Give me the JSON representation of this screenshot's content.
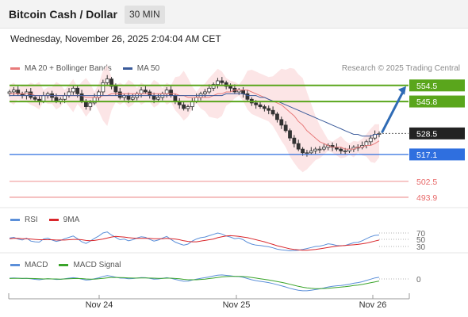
{
  "header": {
    "title": "Bitcoin Cash / Dollar",
    "timeframe": "30 MIN",
    "datetime": "Wednesday, November 26, 2025 2:04:04 AM CET"
  },
  "legend": {
    "ma20_label": "MA 20 + Bollinger Bands",
    "ma50_label": "MA 50",
    "credit": "Research © 2025 Trading Central",
    "rsi_label": "RSI",
    "rsi_ma_label": "9MA",
    "macd_label": "MACD",
    "macd_signal_label": "MACD Signal"
  },
  "colors": {
    "ma20": "#e87a7a",
    "ma50": "#3a5a9a",
    "bollinger_fill": "#fbe0e2",
    "resistance": "#5aa61c",
    "support": "#2f6fdf",
    "target_line": "#e86a6a",
    "last_price": "#222222",
    "arrow": "#2f6bb5",
    "rsi": "#5b8fd9",
    "rsi_ma": "#d9262b",
    "macd": "#5b8fd9",
    "macd_signal": "#3aa42a",
    "candle_up": "#ffffff",
    "candle_down": "#333333"
  },
  "chart_data": {
    "type": "candlestick",
    "title": "Bitcoin Cash / Dollar",
    "interval": "30 MIN",
    "x_tick_labels": [
      "Nov 24",
      "Nov 25",
      "Nov 26"
    ],
    "y_range": [
      490,
      560
    ],
    "price_levels": [
      {
        "label": "554.5",
        "value": 554.5,
        "kind": "resistance"
      },
      {
        "label": "545.8",
        "value": 545.8,
        "kind": "resistance"
      },
      {
        "label": "528.5",
        "value": 528.5,
        "kind": "last"
      },
      {
        "label": "517.1",
        "value": 517.1,
        "kind": "support"
      },
      {
        "label": "502.5",
        "value": 502.5,
        "kind": "target"
      },
      {
        "label": "493.9",
        "value": 493.9,
        "kind": "target"
      }
    ],
    "close": [
      551,
      552,
      550,
      549,
      551,
      548,
      547,
      546,
      549,
      550,
      548,
      546,
      547,
      549,
      551,
      553,
      550,
      546,
      543,
      545,
      548,
      551,
      556,
      558,
      554,
      551,
      548,
      549,
      547,
      548,
      550,
      552,
      551,
      549,
      547,
      548,
      550,
      552,
      549,
      546,
      544,
      542,
      543,
      546,
      548,
      550,
      551,
      553,
      555,
      557,
      556,
      554,
      553,
      551,
      552,
      550,
      547,
      545,
      544,
      543,
      542,
      541,
      539,
      536,
      533,
      530,
      526,
      523,
      520,
      518,
      518,
      519,
      520,
      520,
      521,
      522,
      521,
      520,
      519,
      519,
      520,
      521,
      521,
      522,
      524,
      526,
      528,
      528.5
    ],
    "ma20": [
      550,
      550,
      550,
      550,
      550,
      550,
      549,
      549,
      549,
      549,
      549,
      549,
      549,
      549,
      549,
      549,
      549,
      549,
      548,
      548,
      548,
      548,
      549,
      549,
      550,
      550,
      550,
      550,
      550,
      550,
      550,
      550,
      550,
      550,
      550,
      550,
      550,
      550,
      550,
      550,
      549,
      549,
      548,
      548,
      548,
      548,
      548,
      548,
      549,
      550,
      550,
      551,
      551,
      552,
      552,
      552,
      552,
      551,
      550,
      549,
      548,
      547,
      546,
      545,
      544,
      542,
      540,
      538,
      535,
      533,
      530,
      528,
      526,
      524,
      523,
      522,
      521,
      521,
      521,
      520,
      520,
      520,
      521,
      521,
      522,
      522,
      523,
      524.5
    ],
    "ma50": [
      549,
      549,
      549,
      549,
      549,
      549,
      549,
      549,
      549,
      549,
      549,
      549,
      549,
      549,
      549,
      549,
      549,
      549,
      549,
      549,
      549,
      549,
      549,
      549,
      549,
      549,
      549,
      549,
      549,
      549,
      549,
      549,
      549,
      549,
      549,
      549,
      549,
      549,
      549,
      549,
      549,
      549,
      549,
      549,
      549,
      549,
      549,
      549,
      549,
      549,
      549,
      550,
      550,
      550,
      550,
      550,
      549,
      549,
      549,
      548,
      548,
      547,
      546,
      546,
      545,
      544,
      543,
      542,
      541,
      540,
      539,
      538,
      537,
      536,
      535,
      534,
      533,
      532,
      531,
      530,
      529,
      528,
      528,
      527,
      527,
      527,
      528,
      528
    ],
    "rsi": [
      55,
      57,
      52,
      49,
      55,
      46,
      44,
      43,
      52,
      55,
      49,
      45,
      48,
      53,
      57,
      61,
      53,
      44,
      39,
      46,
      54,
      61,
      70,
      73,
      64,
      57,
      50,
      52,
      47,
      50,
      55,
      59,
      57,
      51,
      46,
      49,
      55,
      60,
      51,
      43,
      38,
      34,
      37,
      46,
      52,
      56,
      58,
      62,
      66,
      70,
      67,
      61,
      58,
      53,
      55,
      50,
      42,
      37,
      34,
      33,
      31,
      29,
      26,
      22,
      20,
      19,
      17,
      18,
      19,
      21,
      24,
      27,
      30,
      31,
      34,
      38,
      36,
      33,
      32,
      33,
      37,
      41,
      42,
      47,
      53,
      59,
      63,
      64
    ],
    "rsi_ma": [
      53,
      54,
      54,
      53,
      53,
      52,
      51,
      50,
      50,
      50,
      50,
      49,
      49,
      49,
      50,
      51,
      51,
      50,
      48,
      47,
      48,
      50,
      52,
      55,
      58,
      60,
      59,
      58,
      56,
      55,
      54,
      54,
      54,
      54,
      53,
      53,
      53,
      54,
      53,
      52,
      50,
      47,
      45,
      44,
      44,
      46,
      48,
      50,
      52,
      56,
      59,
      61,
      62,
      61,
      60,
      58,
      56,
      53,
      50,
      47,
      44,
      40,
      36,
      32,
      29,
      26,
      23,
      21,
      20,
      19,
      19,
      20,
      21,
      23,
      25,
      27,
      29,
      31,
      32,
      33,
      34,
      35,
      36,
      38,
      40,
      43,
      46,
      49
    ],
    "macd": [
      0.6,
      0.8,
      0.6,
      0.3,
      0.5,
      0.1,
      -0.3,
      -0.6,
      -0.2,
      0.2,
      0.0,
      -0.4,
      -0.3,
      0.1,
      0.6,
      1.0,
      0.6,
      -0.2,
      -0.9,
      -0.6,
      0.1,
      0.9,
      2.0,
      2.6,
      2.1,
      1.4,
      0.7,
      0.6,
      0.2,
      0.3,
      0.7,
      1.1,
      1.0,
      0.5,
      -0.1,
      0.0,
      0.5,
      1.0,
      0.5,
      -0.3,
      -1.1,
      -1.8,
      -1.7,
      -0.9,
      -0.2,
      0.5,
      1.0,
      1.6,
      2.3,
      3.0,
      3.2,
      2.8,
      2.5,
      2.0,
      1.9,
      1.3,
      0.3,
      -0.6,
      -1.3,
      -1.9,
      -2.4,
      -2.9,
      -3.6,
      -4.5,
      -5.4,
      -6.3,
      -7.4,
      -8.2,
      -8.9,
      -9.3,
      -9.3,
      -8.9,
      -8.4,
      -7.8,
      -7.1,
      -6.3,
      -5.8,
      -5.4,
      -5.1,
      -4.7,
      -4.1,
      -3.4,
      -2.9,
      -2.2,
      -1.2,
      -0.2,
      0.8,
      1.3
    ],
    "macd_signal": [
      0.4,
      0.5,
      0.5,
      0.5,
      0.5,
      0.4,
      0.3,
      0.1,
      0.0,
      0.1,
      0.0,
      0.0,
      -0.1,
      0.0,
      0.1,
      0.3,
      0.4,
      0.3,
      0.0,
      -0.1,
      -0.1,
      0.1,
      0.5,
      0.9,
      1.2,
      1.2,
      1.1,
      1.0,
      0.8,
      0.7,
      0.7,
      0.8,
      0.8,
      0.7,
      0.6,
      0.5,
      0.5,
      0.6,
      0.6,
      0.4,
      0.1,
      -0.3,
      -0.6,
      -0.6,
      -0.6,
      -0.4,
      -0.1,
      0.3,
      0.7,
      1.2,
      1.6,
      1.9,
      2.0,
      2.0,
      2.0,
      1.9,
      1.6,
      1.2,
      0.7,
      0.2,
      -0.3,
      -0.8,
      -1.4,
      -2.0,
      -2.7,
      -3.4,
      -4.2,
      -5.0,
      -5.8,
      -6.5,
      -7.0,
      -7.4,
      -7.6,
      -7.6,
      -7.5,
      -7.3,
      -7.0,
      -6.7,
      -6.4,
      -6.1,
      -5.7,
      -5.2,
      -4.8,
      -4.3,
      -3.7,
      -3.0,
      -2.3,
      -1.6
    ],
    "rsi_levels": [
      "70",
      "50",
      "30"
    ],
    "macd_levels": [
      "0"
    ]
  }
}
